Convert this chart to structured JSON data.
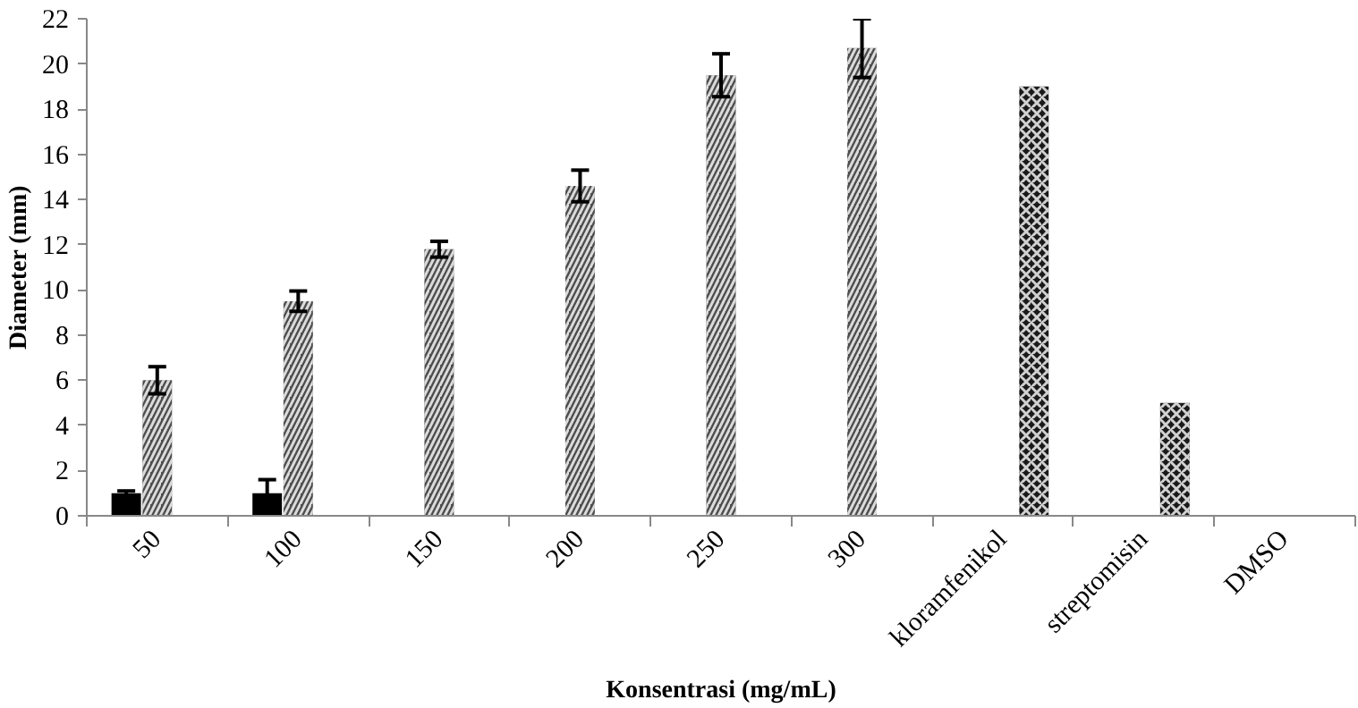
{
  "chart_data": {
    "type": "bar",
    "xlabel": "Konsentrasi (mg/mL)",
    "ylabel": "Diameter (mm)",
    "categories": [
      "50",
      "100",
      "150",
      "200",
      "250",
      "300",
      "kloramfenikol",
      "streptomisin",
      "DMSO"
    ],
    "series": [
      {
        "color": "#000000",
        "values": [
          1.0,
          1.0,
          null,
          null,
          null,
          null,
          null,
          null,
          null
        ],
        "errors": [
          0.1,
          0.6,
          null,
          null,
          null,
          null,
          null,
          null,
          null
        ]
      },
      {
        "color": "#4d4d4d",
        "values": [
          6.0,
          9.5,
          11.8,
          14.6,
          19.5,
          20.7,
          null,
          null,
          null
        ],
        "errors": [
          0.6,
          0.45,
          0.35,
          0.7,
          0.95,
          1.3,
          null,
          null,
          null
        ]
      },
      {
        "color": "#1a1a1a",
        "values": [
          null,
          null,
          null,
          null,
          null,
          null,
          19.0,
          5.0,
          null
        ]
      }
    ],
    "ylim": [
      0,
      22
    ],
    "yticks": [
      0,
      2,
      4,
      6,
      8,
      10,
      12,
      14,
      16,
      18,
      20,
      22
    ],
    "grid": false
  }
}
